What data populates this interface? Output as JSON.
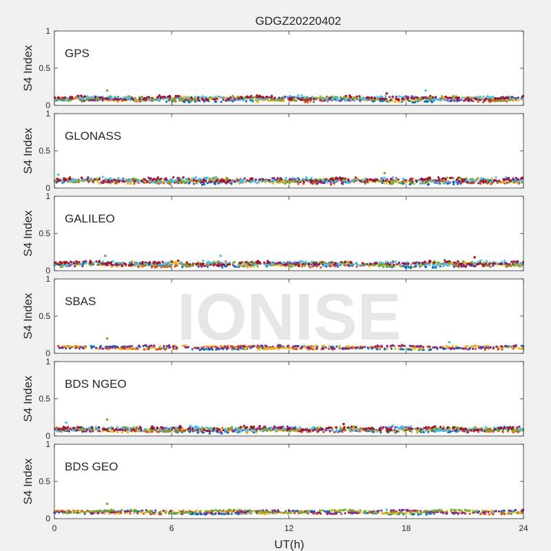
{
  "figure_title": "GDGZ20220402",
  "watermark": "IONISE",
  "shared_xlabel": "UT(h)",
  "x_ticks": [
    "0",
    "6",
    "12",
    "18",
    "24"
  ],
  "y_ticks": [
    "0",
    "0.5",
    "1"
  ],
  "colors": {
    "background": "#f0f0f0",
    "axes_bg": "#ffffff",
    "axis_line": "#262626",
    "watermark": "#e6e6e6",
    "series": [
      "#0072BD",
      "#D95319",
      "#EDB120",
      "#7E2F8E",
      "#77AC30",
      "#4DBEEE",
      "#A2142F"
    ]
  },
  "chart_data": [
    {
      "type": "scatter",
      "panel_label": "GPS",
      "ylabel": "S4 Index",
      "xlim": [
        0,
        24
      ],
      "ylim": [
        0,
        1
      ],
      "x_ticks": [
        0,
        6,
        12,
        18,
        24
      ],
      "y_ticks": [
        0,
        0.5,
        1
      ],
      "baseline_s4": 0.09,
      "spread": 0.025,
      "spikes": [
        {
          "x": 2.7,
          "y": 0.2
        },
        {
          "x": 19.0,
          "y": 0.2
        },
        {
          "x": 17.0,
          "y": 0.16
        }
      ],
      "series_count": 7
    },
    {
      "type": "scatter",
      "panel_label": "GLONASS",
      "ylabel": "S4 Index",
      "xlim": [
        0,
        24
      ],
      "ylim": [
        0,
        1
      ],
      "x_ticks": [
        0,
        6,
        12,
        18,
        24
      ],
      "y_ticks": [
        0,
        0.5,
        1
      ],
      "baseline_s4": 0.1,
      "spread": 0.035,
      "spikes": [
        {
          "x": 16.9,
          "y": 0.2
        },
        {
          "x": 0.2,
          "y": 0.18
        }
      ],
      "series_count": 7
    },
    {
      "type": "scatter",
      "panel_label": "GALILEO",
      "ylabel": "S4 Index",
      "xlim": [
        0,
        24
      ],
      "ylim": [
        0,
        1
      ],
      "x_ticks": [
        0,
        6,
        12,
        18,
        24
      ],
      "y_ticks": [
        0,
        0.5,
        1
      ],
      "baseline_s4": 0.09,
      "spread": 0.03,
      "spikes": [
        {
          "x": 2.6,
          "y": 0.2
        },
        {
          "x": 8.5,
          "y": 0.2
        },
        {
          "x": 21.5,
          "y": 0.18
        }
      ],
      "series_count": 7
    },
    {
      "type": "scatter",
      "panel_label": "SBAS",
      "ylabel": "S4 Index",
      "xlim": [
        0,
        24
      ],
      "ylim": [
        0,
        1
      ],
      "x_ticks": [
        0,
        6,
        12,
        18,
        24
      ],
      "y_ticks": [
        0,
        0.5,
        1
      ],
      "baseline_s4": 0.08,
      "spread": 0.015,
      "spikes": [
        {
          "x": 2.7,
          "y": 0.2
        },
        {
          "x": 20.2,
          "y": 0.15
        }
      ],
      "series_count": 4
    },
    {
      "type": "scatter",
      "panel_label": "BDS NGEO",
      "ylabel": "S4 Index",
      "xlim": [
        0,
        24
      ],
      "ylim": [
        0,
        1
      ],
      "x_ticks": [
        0,
        6,
        12,
        18,
        24
      ],
      "y_ticks": [
        0,
        0.5,
        1
      ],
      "baseline_s4": 0.09,
      "spread": 0.03,
      "spikes": [
        {
          "x": 2.7,
          "y": 0.22
        },
        {
          "x": 0.6,
          "y": 0.18
        },
        {
          "x": 14.8,
          "y": 0.16
        }
      ],
      "series_count": 7
    },
    {
      "type": "scatter",
      "panel_label": "BDS GEO",
      "ylabel": "S4 Index",
      "xlim": [
        0,
        24
      ],
      "ylim": [
        0,
        1
      ],
      "x_ticks": [
        0,
        6,
        12,
        18,
        24
      ],
      "y_ticks": [
        0,
        0.5,
        1
      ],
      "baseline_s4": 0.09,
      "spread": 0.012,
      "spikes": [
        {
          "x": 2.7,
          "y": 0.2
        },
        {
          "x": 17.0,
          "y": 0.12
        }
      ],
      "series_count": 5
    }
  ]
}
